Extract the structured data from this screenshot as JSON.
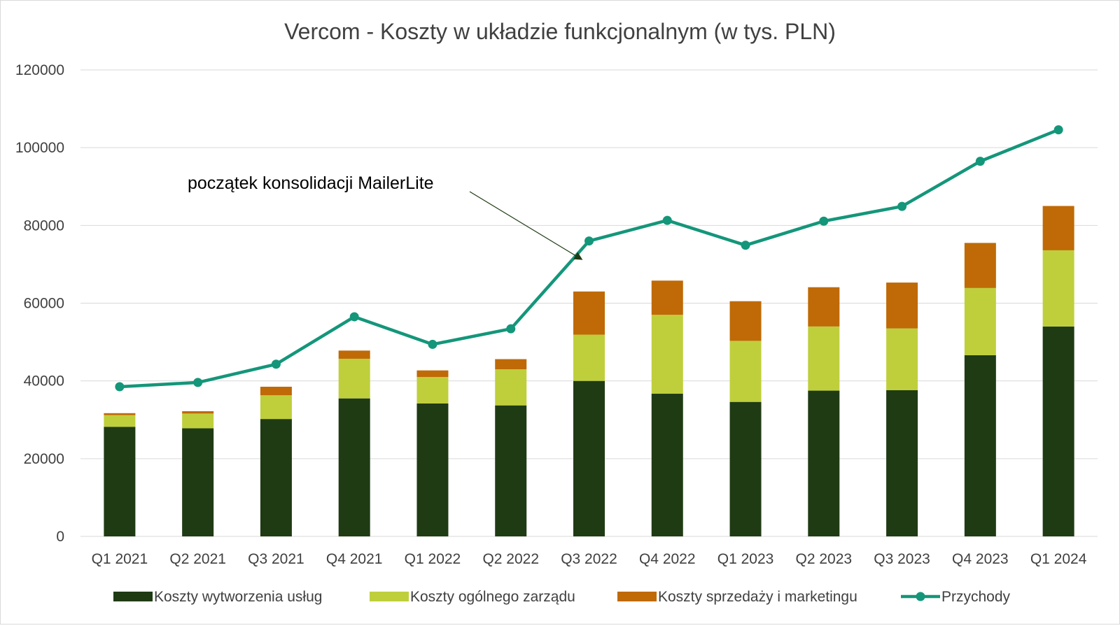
{
  "chart_data": {
    "type": "bar",
    "title": "Vercom - Koszty w układzie funkcjonalnym (w tys. PLN)",
    "xlabel": "",
    "ylabel": "",
    "ylim": [
      0,
      120000
    ],
    "yticks": [
      0,
      20000,
      40000,
      60000,
      80000,
      100000,
      120000
    ],
    "grid": true,
    "legend_position": "bottom",
    "categories": [
      "Q1 2021",
      "Q2 2021",
      "Q3 2021",
      "Q4 2021",
      "Q1 2022",
      "Q2 2022",
      "Q3 2022",
      "Q4 2022",
      "Q1 2023",
      "Q2 2023",
      "Q3 2023",
      "Q4 2023",
      "Q1 2024"
    ],
    "series": [
      {
        "name": "Koszty wytworzenia usług",
        "type": "bar",
        "stacked": true,
        "color": "#1f3b14",
        "values": [
          28200,
          27800,
          30200,
          35500,
          34200,
          33700,
          40000,
          36700,
          34600,
          37500,
          37600,
          46600,
          54000
        ]
      },
      {
        "name": "Koszty ogólnego zarządu",
        "type": "bar",
        "stacked": true,
        "color": "#bfcf3c",
        "values": [
          3000,
          3800,
          6100,
          10200,
          6800,
          9300,
          11900,
          20300,
          15700,
          16500,
          15900,
          17300,
          19600
        ]
      },
      {
        "name": "Koszty sprzedaży i marketingu",
        "type": "bar",
        "stacked": true,
        "color": "#bf6a06",
        "values": [
          500,
          600,
          2200,
          2100,
          1700,
          2600,
          11100,
          8800,
          10200,
          10100,
          11800,
          11600,
          11400
        ]
      },
      {
        "name": "Przychody",
        "type": "line",
        "color": "#14967a",
        "values": [
          38500,
          39600,
          44300,
          56500,
          49400,
          53400,
          76000,
          81300,
          74900,
          81100,
          84900,
          96500,
          104600
        ]
      }
    ],
    "annotations": [
      {
        "text": "początek konsolidacji MailerLite",
        "arrow_target_category": "Q3 2022",
        "arrow_target_value": 70500,
        "color": "#000000"
      }
    ]
  }
}
